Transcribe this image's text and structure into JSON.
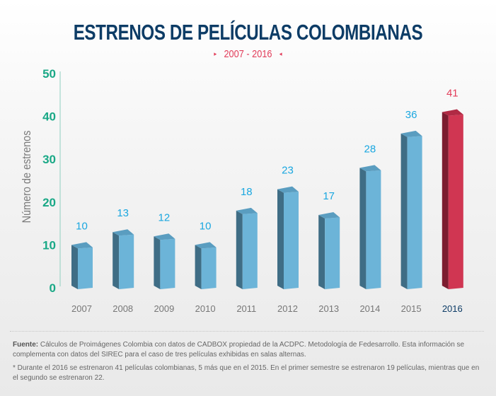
{
  "header": {
    "title": "ESTRENOS DE PELÍCULAS COLOMBIANAS",
    "subtitle": "2007 - 2016",
    "arrow_left": "▸",
    "arrow_right": "◂"
  },
  "colors": {
    "title": "#0d3c66",
    "accent_red": "#e23d5a",
    "axis_green": "#19a886",
    "label_blue": "#1aa7e0",
    "bar_front": "#6cb4d8",
    "bar_side": "#3f6d85",
    "bar_top": "#5a9dc0",
    "hl_front": "#d03652",
    "hl_side": "#7c1d30",
    "hl_top": "#b02a44"
  },
  "chart_data": {
    "type": "bar",
    "title": "ESTRENOS DE PELÍCULAS COLOMBIANAS",
    "subtitle": "2007 - 2016",
    "xlabel": "",
    "ylabel": "Número de estrenos",
    "categories": [
      "2007",
      "2008",
      "2009",
      "2010",
      "2011",
      "2012",
      "2013",
      "2014",
      "2015",
      "2016"
    ],
    "values": [
      10,
      13,
      12,
      10,
      18,
      23,
      17,
      28,
      36,
      41
    ],
    "highlight": "2016",
    "ylim": [
      0,
      50
    ],
    "yticks": [
      0,
      10,
      20,
      30,
      40,
      50
    ],
    "grid": false,
    "data_labels": true
  },
  "footer": {
    "source_label": "Fuente:",
    "source_text": " Cálculos de Proimágenes Colombia con datos de CADBOX propiedad de la ACDPC. Metodología de Fedesarrollo. Esta información se complementa con datos del SIREC para el caso de tres películas exhibidas en salas alternas.",
    "note": "* Durante el 2016 se estrenaron 41 películas colombianas,  5 más que en el 2015. En el primer semestre se estrenaron 19 películas, mientras que en el segundo se estrenaron 22."
  }
}
